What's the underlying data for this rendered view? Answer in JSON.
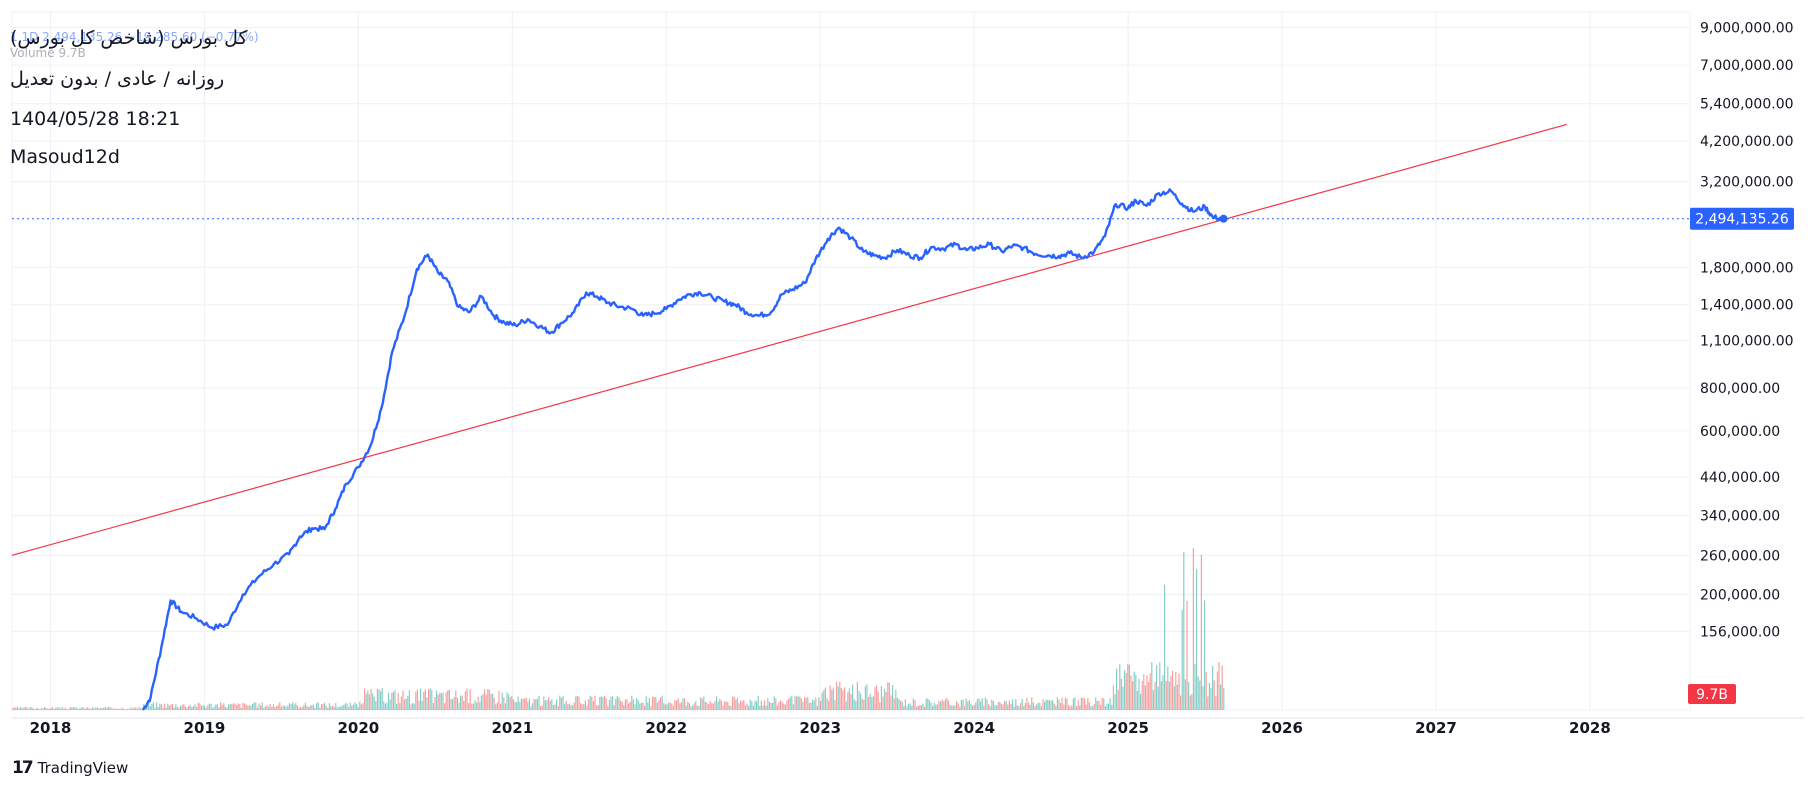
{
  "overlay": {
    "symbol_line": "1  1D  2,494,135.26  −19,285.60 (−0.77%)",
    "title": "کل بورس (شاخص کل بورس)",
    "volume_label": "Volume  9.7B",
    "subtitle": "روزانه / عادی / بدون تعدیل",
    "datetime": "1404/05/28 18:21",
    "author": "Masoud12d"
  },
  "branding": {
    "logo_text": "TradingView"
  },
  "colors": {
    "price_line": "#2962ff",
    "trend_line": "#f23645",
    "volume_up": "#26a69a",
    "volume_down": "#ef5350",
    "last_price_badge": "#2962ff",
    "volume_badge": "#f23645",
    "grid": "#eef0f3",
    "axis_text": "#131722"
  },
  "chart_data": {
    "type": "line",
    "scale": "log",
    "grid": true,
    "xlim": [
      2017.75,
      2028.65
    ],
    "ylim": [
      92000,
      10000000
    ],
    "x_ticks": [
      2018,
      2019,
      2020,
      2021,
      2022,
      2023,
      2024,
      2025,
      2026,
      2027,
      2028
    ],
    "x_tick_labels": [
      "2018",
      "2019",
      "2020",
      "2021",
      "2022",
      "2023",
      "2024",
      "2025",
      "2026",
      "2027",
      "2028"
    ],
    "y_ticks": [
      9000000,
      7000000,
      5400000,
      4200000,
      3200000,
      1800000,
      1400000,
      1100000,
      800000,
      600000,
      440000,
      340000,
      260000,
      200000,
      156000
    ],
    "y_tick_labels": [
      "9,000,000.00",
      "7,000,000.00",
      "5,400,000.00",
      "4,200,000.00",
      "3,200,000.00",
      "1,800,000.00",
      "1,400,000.00",
      "1,100,000.00",
      "800,000.00",
      "600,000.00",
      "440,000.00",
      "340,000.00",
      "260,000.00",
      "200,000.00",
      "156,000.00"
    ],
    "last_price": 2494135.26,
    "last_price_label": "2,494,135.26",
    "volume_label": "9.7B",
    "series": [
      {
        "type": "line",
        "x": [
          2018.6,
          2018.65,
          2018.72,
          2018.78,
          2018.85,
          2018.95,
          2019.05,
          2019.15,
          2019.25,
          2019.35,
          2019.45,
          2019.55,
          2019.62,
          2019.7,
          2019.78,
          2019.85,
          2019.92,
          2020.0,
          2020.08,
          2020.15,
          2020.22,
          2020.3,
          2020.38,
          2020.45,
          2020.52,
          2020.58,
          2020.65,
          2020.72,
          2020.8,
          2020.88,
          2020.95,
          2021.02,
          2021.1,
          2021.18,
          2021.25,
          2021.32,
          2021.4,
          2021.48,
          2021.55,
          2021.62,
          2021.7,
          2021.78,
          2021.85,
          2021.92,
          2022.0,
          2022.08,
          2022.15,
          2022.22,
          2022.3,
          2022.38,
          2022.45,
          2022.52,
          2022.6,
          2022.68,
          2022.75,
          2022.82,
          2022.9,
          2022.97,
          2023.05,
          2023.12,
          2023.2,
          2023.28,
          2023.35,
          2023.42,
          2023.5,
          2023.58,
          2023.65,
          2023.72,
          2023.8,
          2023.88,
          2023.95,
          2024.02,
          2024.1,
          2024.18,
          2024.25,
          2024.32,
          2024.4,
          2024.48,
          2024.55,
          2024.62,
          2024.7,
          2024.78,
          2024.85,
          2024.92,
          2025.0,
          2025.05,
          2025.12,
          2025.2,
          2025.28,
          2025.35,
          2025.42,
          2025.5,
          2025.55,
          2025.62
        ],
        "values": [
          92000,
          100000,
          140000,
          192000,
          178000,
          170000,
          160000,
          163000,
          200000,
          225000,
          245000,
          262000,
          295000,
          312000,
          310000,
          355000,
          420000,
          470000,
          545000,
          700000,
          1020000,
          1300000,
          1780000,
          1960000,
          1730000,
          1640000,
          1380000,
          1330000,
          1480000,
          1300000,
          1240000,
          1220000,
          1270000,
          1210000,
          1160000,
          1240000,
          1330000,
          1520000,
          1480000,
          1420000,
          1380000,
          1360000,
          1300000,
          1320000,
          1360000,
          1450000,
          1500000,
          1520000,
          1470000,
          1430000,
          1400000,
          1330000,
          1300000,
          1330000,
          1500000,
          1550000,
          1620000,
          1900000,
          2180000,
          2350000,
          2190000,
          2000000,
          1950000,
          1920000,
          2020000,
          1950000,
          1920000,
          2060000,
          2040000,
          2100000,
          2020000,
          2050000,
          2100000,
          2000000,
          2080000,
          2050000,
          1970000,
          1950000,
          1940000,
          1980000,
          1920000,
          2000000,
          2220000,
          2750000,
          2680000,
          2820000,
          2720000,
          2960000,
          3000000,
          2760000,
          2620000,
          2700000,
          2520000,
          2494135
        ]
      },
      {
        "type": "trendline",
        "x": [
          2017.75,
          2027.85
        ],
        "values": [
          260000,
          4700000
        ]
      }
    ]
  }
}
